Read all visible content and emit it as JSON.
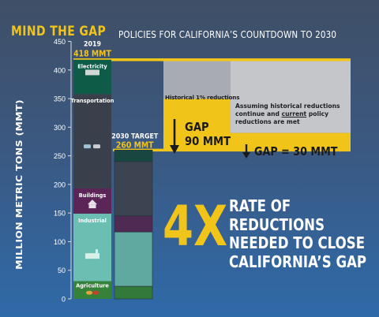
{
  "header": {
    "headline": "MIND THE GAP",
    "subhead": "POLICIES FOR CALIFORNIA’S COUNTDOWN TO 2030"
  },
  "colors": {
    "accent": "#f1c419",
    "electricity": "#0e5b48",
    "transportation": "#39404b",
    "buildings": "#5b2557",
    "industrial": "#6bbfb2",
    "agriculture": "#36823b",
    "target_electricity": "#17473f",
    "target_transportation": "#3b4450",
    "target_buildings": "#4f2a52",
    "target_industrial": "#5fa9a0",
    "target_agriculture": "#337a3a",
    "gap_box": "#a8abb1",
    "gap_box_light": "#c4c6ca",
    "gap_arrow_box": "#f1c419"
  },
  "icons": [
    "power-plant-icon",
    "car-icon",
    "house-icon",
    "factory-icon",
    "produce-icon",
    "down-arrow-icon"
  ],
  "chart_data": {
    "type": "bar",
    "stacked": true,
    "ylabel": "MILLION METRIC TONS (MMT)",
    "ylim": [
      0,
      450
    ],
    "yticks": [
      0,
      50,
      100,
      150,
      200,
      250,
      300,
      350,
      400,
      450
    ],
    "grid": false,
    "categories": [
      "2019",
      "2030 TARGET"
    ],
    "category_totals": [
      "418 MMT",
      "260 MMT"
    ],
    "totals": [
      418,
      260
    ],
    "series": [
      {
        "name": "Agriculture",
        "key": "agriculture",
        "values": [
          31,
          22
        ]
      },
      {
        "name": "Industrial",
        "key": "industrial",
        "values": [
          118,
          95
        ]
      },
      {
        "name": "Buildings",
        "key": "buildings",
        "values": [
          44,
          28
        ]
      },
      {
        "name": "Transportation",
        "key": "transportation",
        "values": [
          165,
          95
        ]
      },
      {
        "name": "Electricity",
        "key": "electricity",
        "values": [
          60,
          20
        ]
      }
    ],
    "annotations": {
      "historical_label": "Historical 1% reductions",
      "gap1_line1": "GAP",
      "gap1_line2": "90 MMT",
      "gap1_value": 90,
      "historical_projection": 350,
      "assume_part1": "Assuming historical reductions continue and ",
      "assume_underline": "current",
      "assume_part2": " policy reductions are met",
      "gap2_text": "GAP = 30 MMT",
      "gap2_value": 30,
      "policy_projection": 290
    }
  },
  "callout": {
    "big": "4X",
    "lines": [
      "RATE OF",
      "REDUCTIONS",
      "NEEDED TO CLOSE",
      "CALIFORNIA’S GAP"
    ]
  }
}
